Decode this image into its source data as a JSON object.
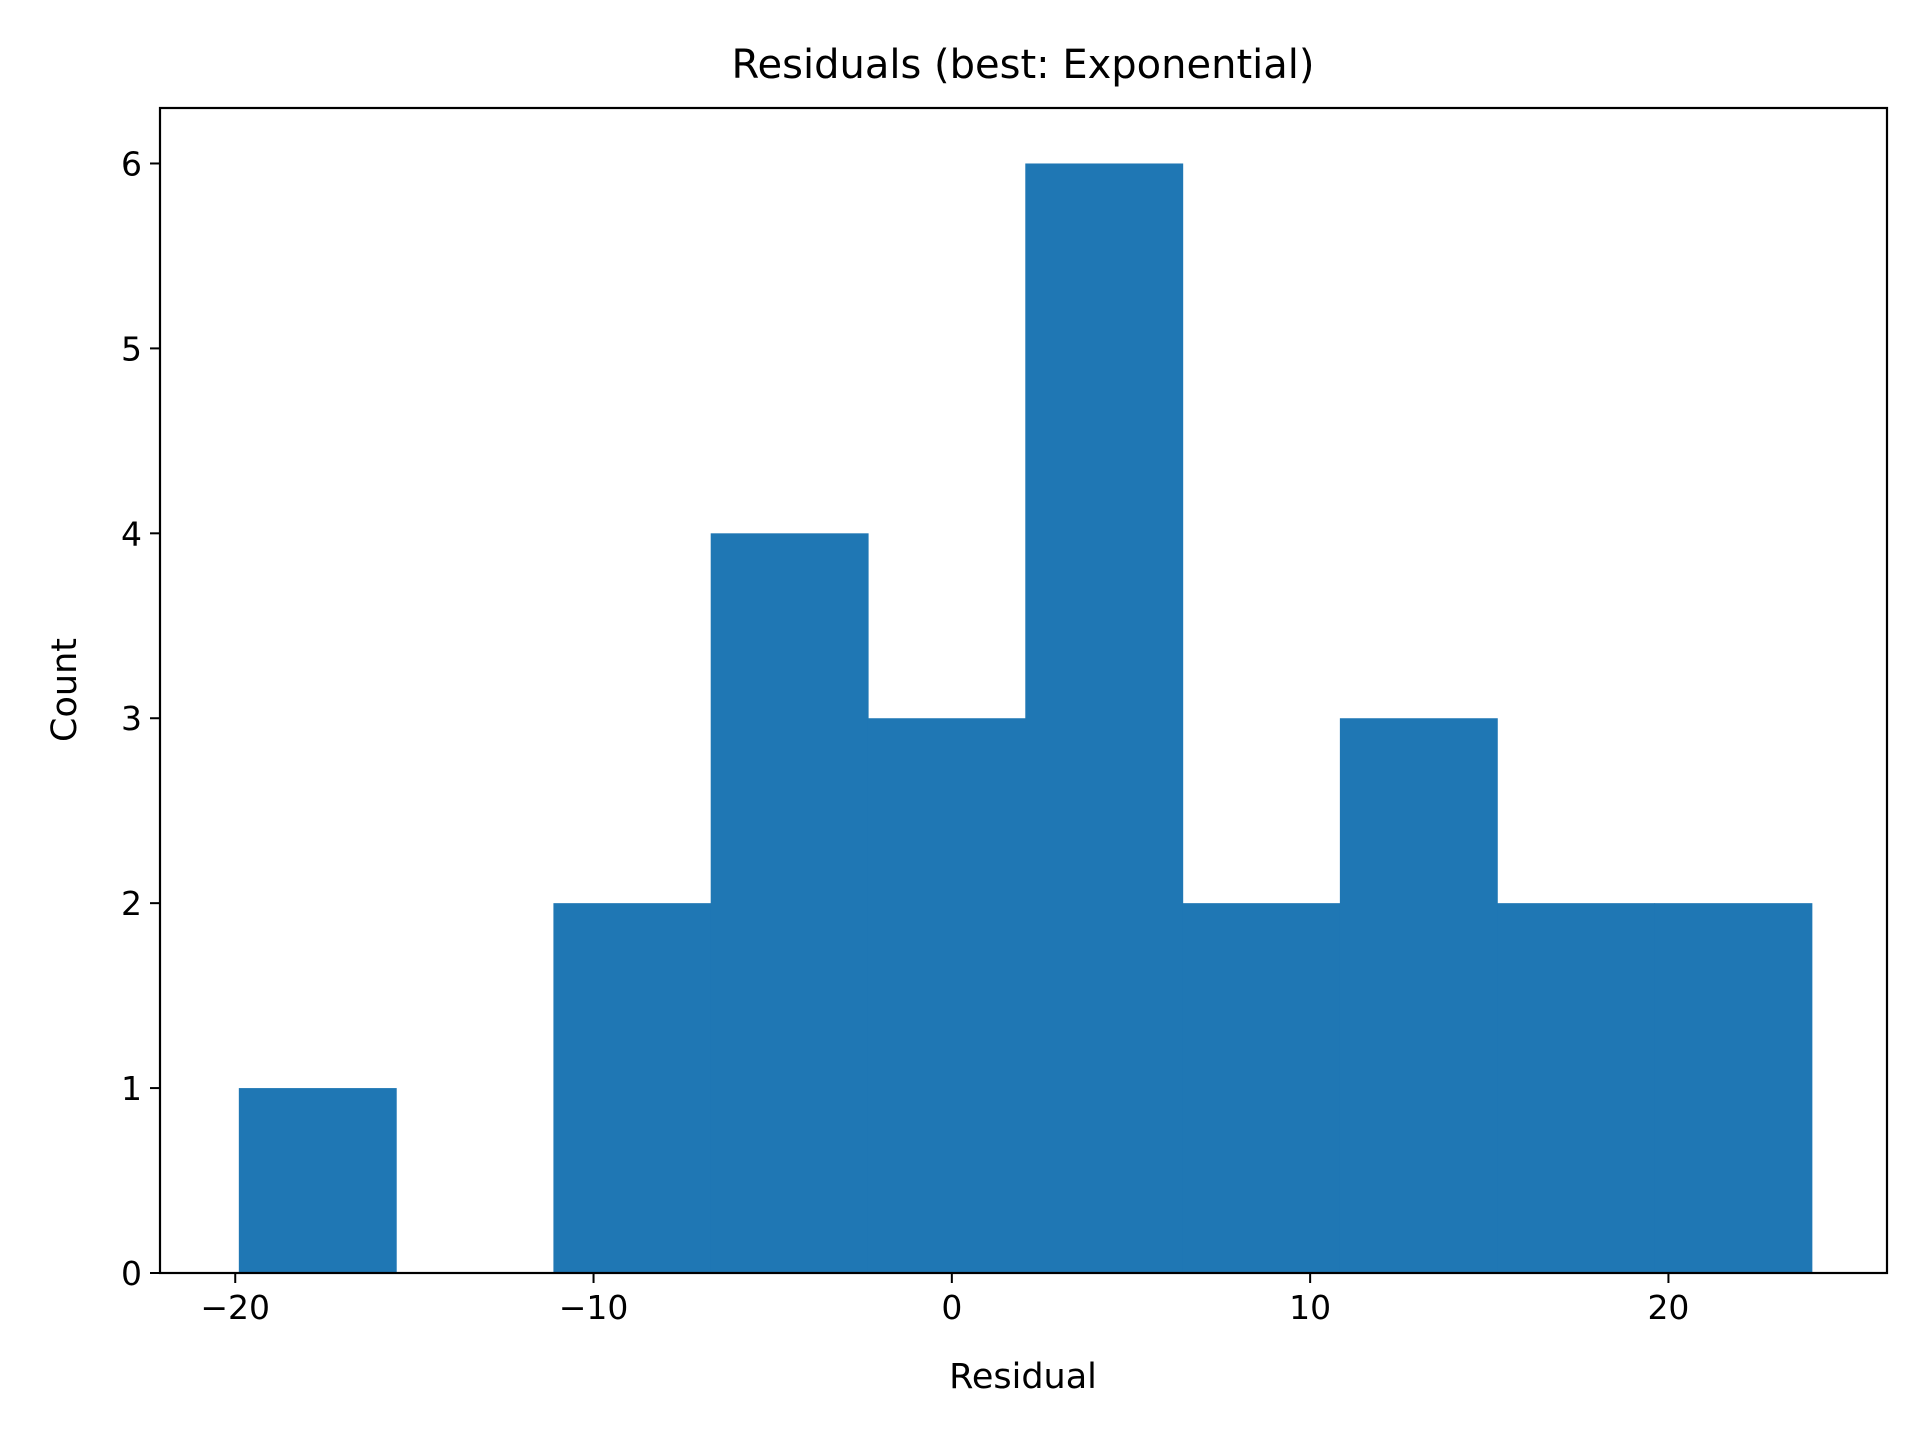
{
  "chart_data": {
    "type": "bar",
    "title": "Residuals (best: Exponential)",
    "xlabel": "Residual",
    "ylabel": "Count",
    "xlim": [
      -22.1,
      26.1
    ],
    "ylim": [
      0,
      6.3
    ],
    "xticks": [
      -20,
      -10,
      0,
      10,
      20
    ],
    "xtick_labels": [
      "−20",
      "−10",
      "0",
      "10",
      "20"
    ],
    "yticks": [
      0,
      1,
      2,
      3,
      4,
      5,
      6
    ],
    "ytick_labels": [
      "0",
      "1",
      "2",
      "3",
      "4",
      "5",
      "6"
    ],
    "bin_edges": [
      -19.9,
      -15.51,
      -11.12,
      -6.73,
      -2.34,
      2.05,
      6.44,
      10.83,
      15.22,
      19.61,
      24.0
    ],
    "values": [
      1,
      0,
      2,
      4,
      3,
      6,
      2,
      3,
      2,
      2
    ],
    "bar_color": "#1f77b4",
    "grid": false
  }
}
